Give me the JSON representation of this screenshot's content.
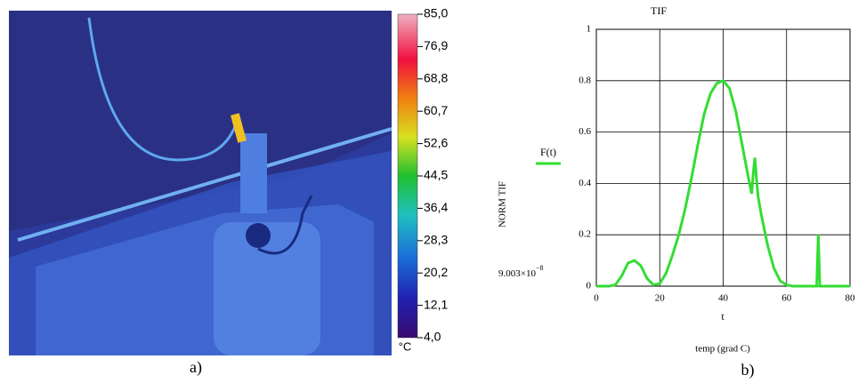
{
  "thermal_image": {
    "colorbar": {
      "unit": "°C",
      "lim": [
        4,
        85
      ],
      "ticks": [
        {
          "value": 85,
          "label": "85,0"
        },
        {
          "value": 76.9,
          "label": "76,9"
        },
        {
          "value": 68.8,
          "label": "68,8"
        },
        {
          "value": 60.7,
          "label": "60,7"
        },
        {
          "value": 52.6,
          "label": "52,6"
        },
        {
          "value": 44.5,
          "label": "44,5"
        },
        {
          "value": 36.4,
          "label": "36,4"
        },
        {
          "value": 28.3,
          "label": "28,3"
        },
        {
          "value": 20.2,
          "label": "20,2"
        },
        {
          "value": 12.1,
          "label": "12,1"
        },
        {
          "value": 4,
          "label": "4,0"
        }
      ]
    },
    "caption": "a)"
  },
  "chart_data": {
    "type": "line",
    "title": "TIF",
    "ylabel": "NORM TIF",
    "xlabel": "t",
    "xlabel2": "temp (grad C)",
    "annotation": {
      "base": "9.003×10",
      "exponent": "−8"
    },
    "caption": "b)",
    "x": [
      0,
      2,
      4,
      6,
      8,
      10,
      12,
      14,
      16,
      18,
      20,
      22,
      24,
      26,
      28,
      30,
      32,
      34,
      36,
      38,
      40,
      42,
      44,
      46,
      48,
      49,
      49.5,
      50,
      50.5,
      51,
      52,
      54,
      56,
      58,
      60,
      62,
      64,
      66,
      68,
      69.5,
      70,
      70.5,
      72,
      74,
      76,
      78,
      80
    ],
    "series": [
      {
        "name": "F(t)",
        "color": "#33dd33",
        "values": [
          0,
          0,
          0,
          0.005,
          0.04,
          0.09,
          0.1,
          0.08,
          0.03,
          0.005,
          0.01,
          0.05,
          0.12,
          0.2,
          0.3,
          0.42,
          0.55,
          0.67,
          0.75,
          0.79,
          0.8,
          0.77,
          0.68,
          0.55,
          0.42,
          0.36,
          0.44,
          0.5,
          0.42,
          0.35,
          0.28,
          0.16,
          0.07,
          0.02,
          0.005,
          0,
          0,
          0,
          0,
          0,
          0.2,
          0,
          0,
          0,
          0,
          0,
          0
        ]
      }
    ],
    "xlim": [
      0,
      80
    ],
    "ylim": [
      0,
      1
    ],
    "xticks": [
      0,
      20,
      40,
      60,
      80
    ],
    "yticks": [
      0,
      0.2,
      0.4,
      0.6,
      0.8,
      1
    ],
    "grid": true
  }
}
